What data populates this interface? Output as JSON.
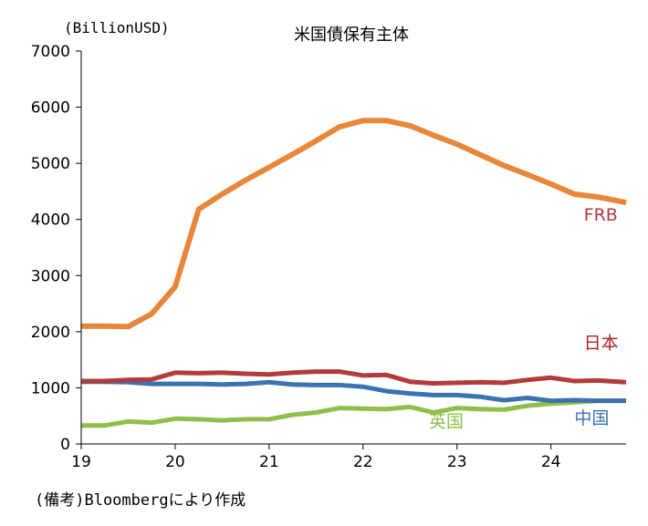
{
  "chart_data": {
    "type": "line",
    "title": "米国債保有主体",
    "ylabel": "(BillionUSD)",
    "note": "(備考)Bloombergにより作成",
    "ylim": [
      0,
      7000
    ],
    "yticks": [
      0,
      1000,
      2000,
      3000,
      4000,
      5000,
      6000,
      7000
    ],
    "xlim": [
      2019,
      2024.8
    ],
    "xticks": [
      2019,
      2020,
      2021,
      2022,
      2023,
      2024
    ],
    "xticklabels": [
      "19",
      "20",
      "21",
      "22",
      "23",
      "24"
    ],
    "grid": false,
    "series": [
      {
        "name": "FRB",
        "color": "#e8873a",
        "label_color": "#b23b3b",
        "x": [
          2019.0,
          2019.25,
          2019.5,
          2019.75,
          2020.0,
          2020.25,
          2020.5,
          2020.75,
          2021.0,
          2021.25,
          2021.5,
          2021.75,
          2022.0,
          2022.25,
          2022.5,
          2022.75,
          2023.0,
          2023.25,
          2023.5,
          2023.75,
          2024.0,
          2024.25,
          2024.5,
          2024.8
        ],
        "values": [
          2100,
          2100,
          2090,
          2320,
          2800,
          4180,
          4450,
          4700,
          4930,
          5160,
          5400,
          5650,
          5760,
          5760,
          5670,
          5500,
          5340,
          5150,
          4960,
          4800,
          4630,
          4450,
          4400,
          4300
        ]
      },
      {
        "name": "日本",
        "color": "#b23b3b",
        "label_color": "#b22222",
        "x": [
          2019.0,
          2019.25,
          2019.5,
          2019.75,
          2020.0,
          2020.25,
          2020.5,
          2020.75,
          2021.0,
          2021.25,
          2021.5,
          2021.75,
          2022.0,
          2022.25,
          2022.5,
          2022.75,
          2023.0,
          2023.25,
          2023.5,
          2023.75,
          2024.0,
          2024.25,
          2024.5,
          2024.8
        ],
        "values": [
          1120,
          1120,
          1140,
          1150,
          1270,
          1260,
          1270,
          1250,
          1240,
          1270,
          1290,
          1290,
          1220,
          1230,
          1110,
          1080,
          1090,
          1100,
          1090,
          1140,
          1180,
          1120,
          1130,
          1100
        ]
      },
      {
        "name": "中国",
        "color": "#3b72b0",
        "label_color": "#3b72b0",
        "x": [
          2019.0,
          2019.25,
          2019.5,
          2019.75,
          2020.0,
          2020.25,
          2020.5,
          2020.75,
          2021.0,
          2021.25,
          2021.5,
          2021.75,
          2022.0,
          2022.25,
          2022.5,
          2022.75,
          2023.0,
          2023.25,
          2023.5,
          2023.75,
          2024.0,
          2024.25,
          2024.5,
          2024.8
        ],
        "values": [
          1110,
          1110,
          1100,
          1070,
          1070,
          1070,
          1060,
          1070,
          1100,
          1060,
          1050,
          1050,
          1020,
          940,
          900,
          870,
          870,
          840,
          780,
          820,
          770,
          780,
          770,
          770
        ]
      },
      {
        "name": "英国",
        "color": "#8fbf4a",
        "label_color": "#8fbf4a",
        "x": [
          2019.0,
          2019.25,
          2019.5,
          2019.75,
          2020.0,
          2020.25,
          2020.5,
          2020.75,
          2021.0,
          2021.25,
          2021.5,
          2021.75,
          2022.0,
          2022.25,
          2022.5,
          2022.75,
          2023.0,
          2023.25,
          2023.5,
          2023.75,
          2024.0,
          2024.25,
          2024.5,
          2024.8
        ],
        "values": [
          330,
          330,
          400,
          380,
          450,
          440,
          420,
          440,
          440,
          520,
          560,
          640,
          630,
          620,
          660,
          560,
          640,
          620,
          610,
          680,
          720,
          740,
          770,
          770
        ]
      }
    ]
  }
}
